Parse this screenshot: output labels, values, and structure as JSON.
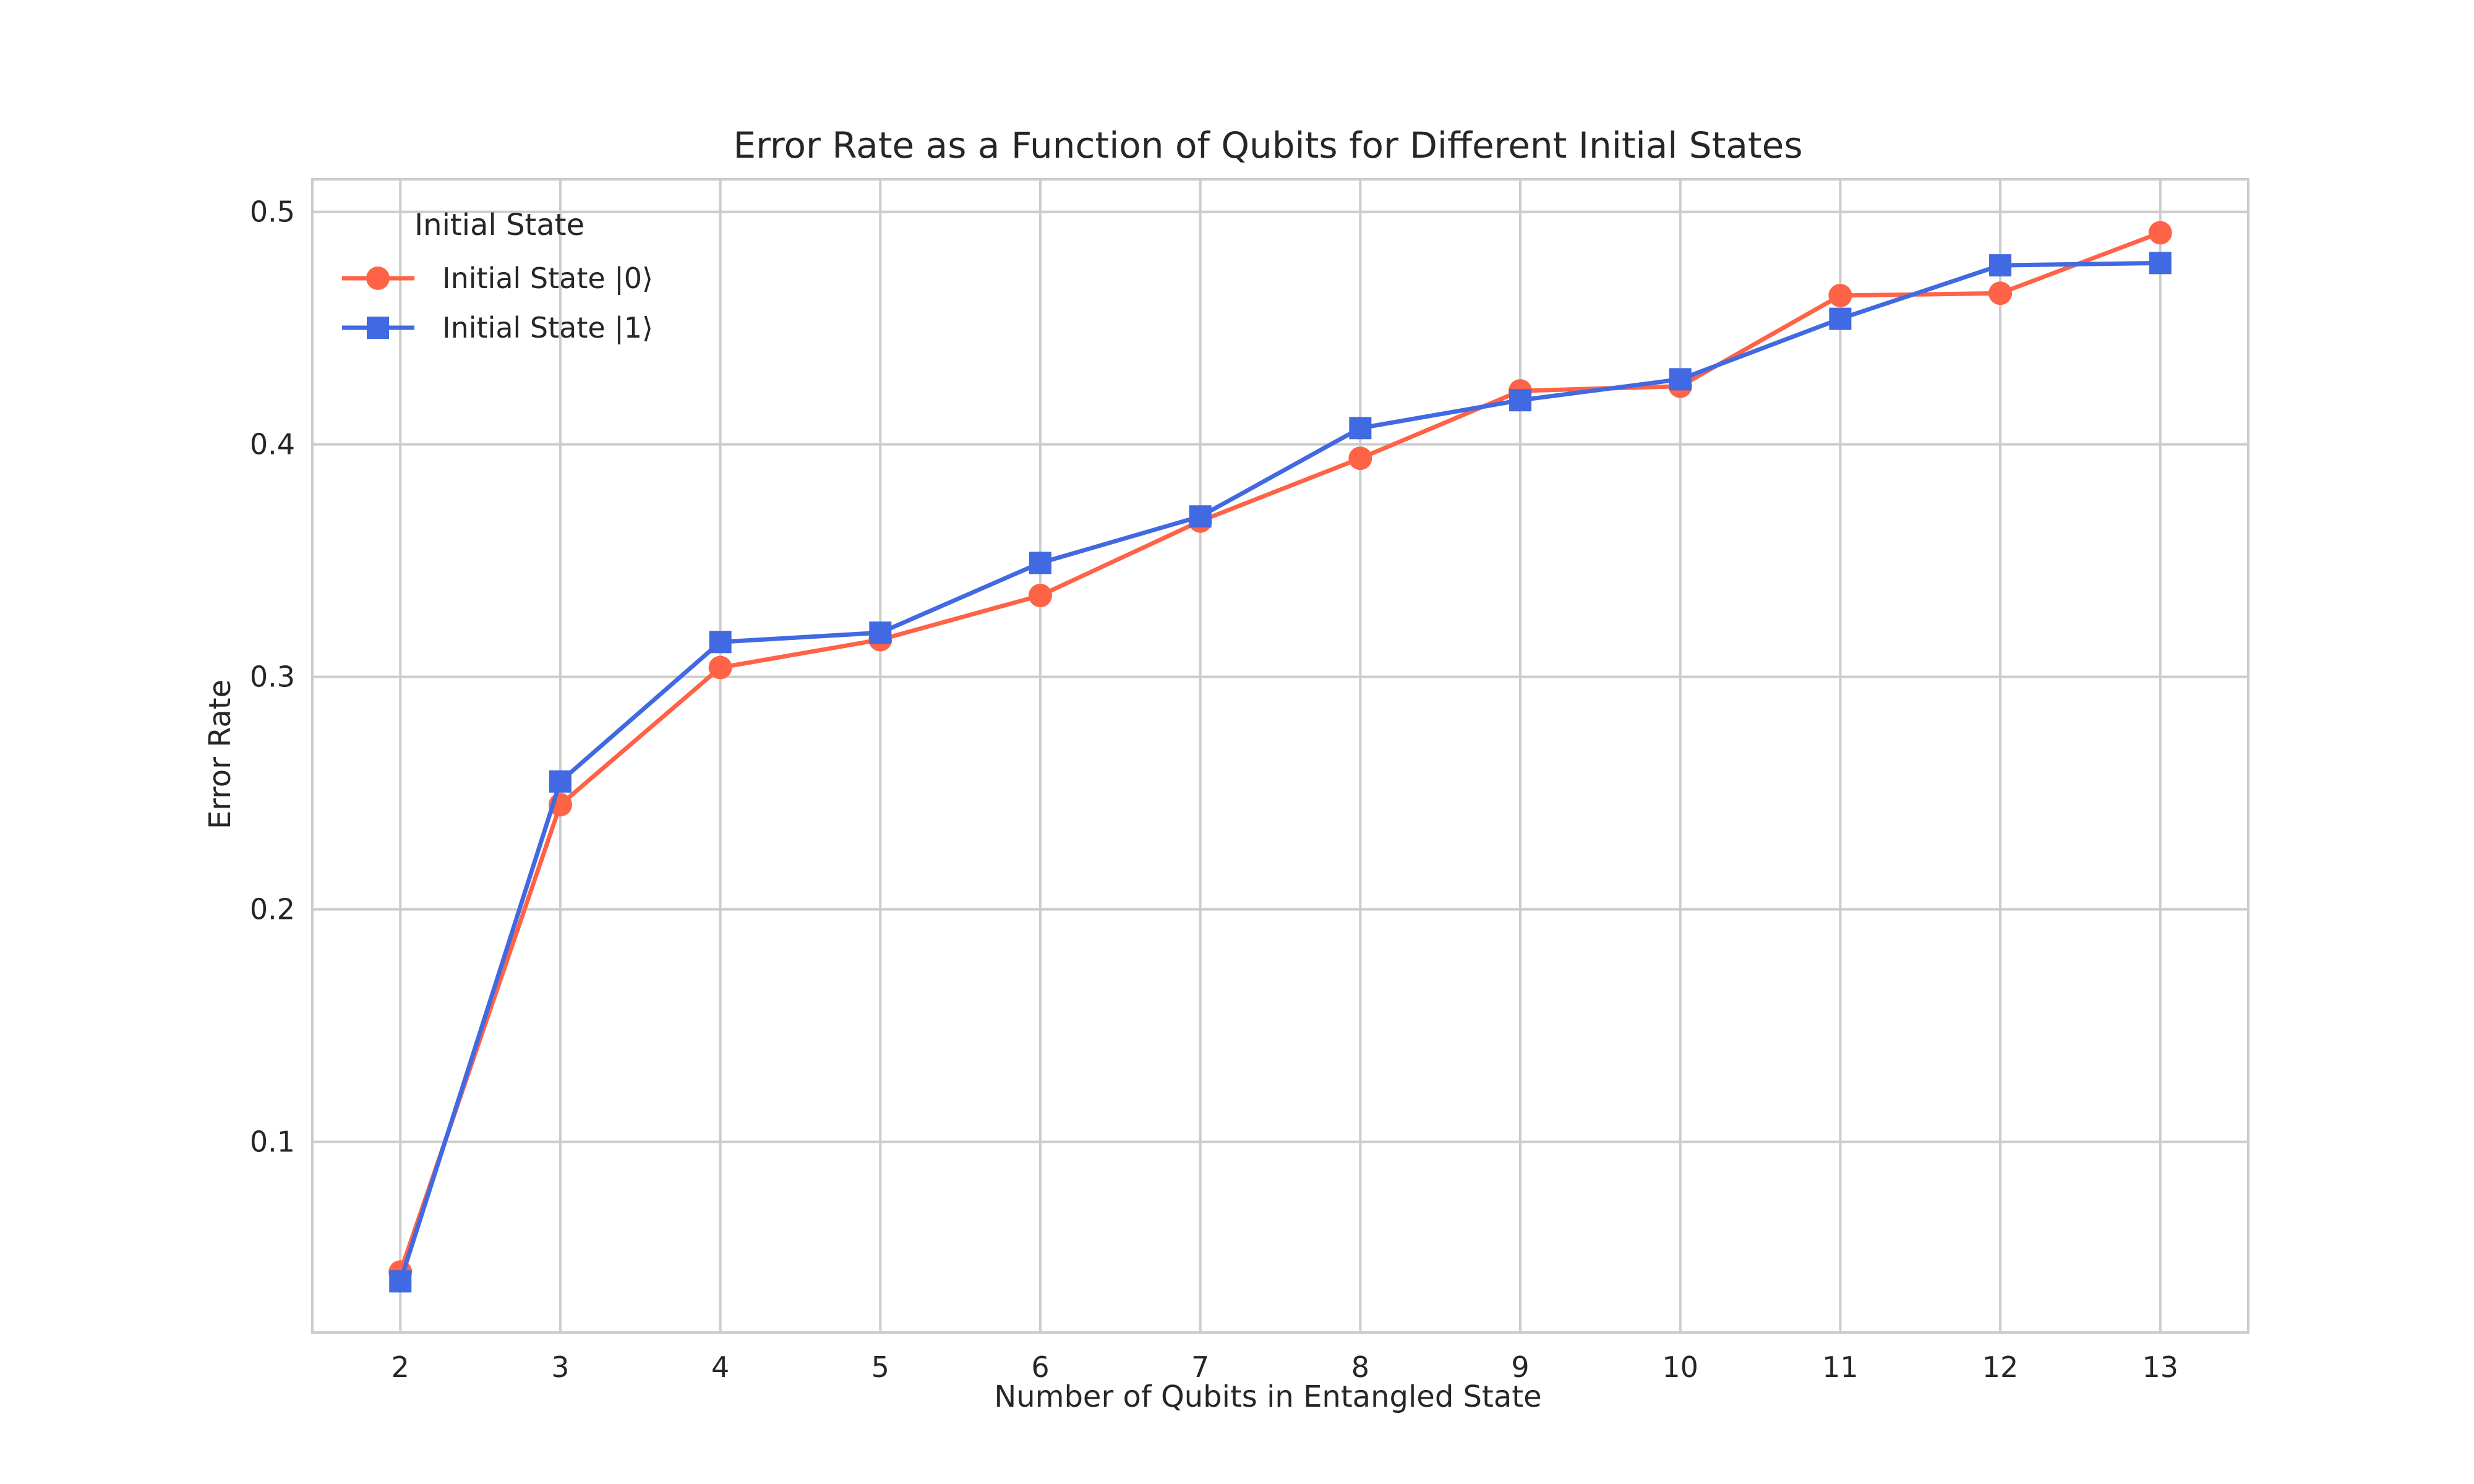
{
  "chart_data": {
    "type": "line",
    "title": "Error Rate as a Function of Qubits for Different Initial States",
    "xlabel": "Number of Qubits in Entangled State",
    "ylabel": "Error Rate",
    "x": [
      2,
      3,
      4,
      5,
      6,
      7,
      8,
      9,
      10,
      11,
      12,
      13
    ],
    "xlim": [
      1.45,
      13.55
    ],
    "ylim": [
      0.018,
      0.514
    ],
    "yticks": [
      0.1,
      0.2,
      0.3,
      0.4,
      0.5
    ],
    "ytick_labels": [
      "0.1",
      "0.2",
      "0.3",
      "0.4",
      "0.5"
    ],
    "xtick_labels": [
      "2",
      "3",
      "4",
      "5",
      "6",
      "7",
      "8",
      "9",
      "10",
      "11",
      "12",
      "13"
    ],
    "grid": true,
    "legend": {
      "title": "Initial State",
      "placement": "upper-left"
    },
    "series": [
      {
        "name": "Initial State |0⟩",
        "color": "#ff6347",
        "marker": "circle",
        "values": [
          0.044,
          0.245,
          0.304,
          0.316,
          0.335,
          0.367,
          0.394,
          0.423,
          0.425,
          0.464,
          0.465,
          0.491
        ]
      },
      {
        "name": "Initial State |1⟩",
        "color": "#4169e1",
        "marker": "square",
        "values": [
          0.04,
          0.255,
          0.315,
          0.319,
          0.349,
          0.369,
          0.407,
          0.419,
          0.428,
          0.454,
          0.477,
          0.478
        ]
      }
    ]
  }
}
